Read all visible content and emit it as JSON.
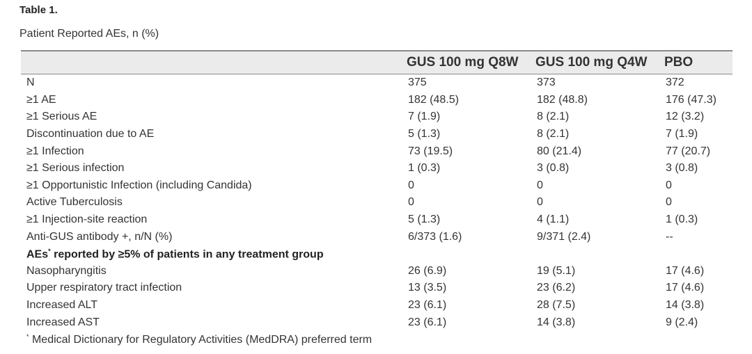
{
  "table_label": "Table 1.",
  "caption": "Patient Reported AEs, n (%)",
  "columns": [
    "",
    "GUS 100 mg Q8W",
    "GUS 100 mg Q4W",
    "PBO"
  ],
  "rows": [
    {
      "label": "N",
      "q8w": "375",
      "q4w": "373",
      "pbo": "372"
    },
    {
      "label": "≥1 AE",
      "q8w": "182 (48.5)",
      "q4w": "182 (48.8)",
      "pbo": "176 (47.3)"
    },
    {
      "label": "≥1 Serious AE",
      "q8w": "7 (1.9)",
      "q4w": "8 (2.1)",
      "pbo": "12 (3.2)"
    },
    {
      "label": "Discontinuation due to AE",
      "q8w": "5 (1.3)",
      "q4w": "8 (2.1)",
      "pbo": "7 (1.9)"
    },
    {
      "label": "≥1 Infection",
      "q8w": "73 (19.5)",
      "q4w": "80 (21.4)",
      "pbo": "77 (20.7)"
    },
    {
      "label": "≥1 Serious infection",
      "q8w": "1 (0.3)",
      "q4w": "3 (0.8)",
      "pbo": "3 (0.8)"
    },
    {
      "label": "≥1 Opportunistic Infection (including Candida)",
      "q8w": "0",
      "q4w": "0",
      "pbo": "0"
    },
    {
      "label": "Active Tuberculosis",
      "q8w": "0",
      "q4w": "0",
      "pbo": "0"
    },
    {
      "label": "≥1 Injection-site reaction",
      "q8w": "5 (1.3)",
      "q4w": "4 (1.1)",
      "pbo": "1 (0.3)"
    },
    {
      "label": "Anti-GUS antibody +, n/N (%)",
      "q8w": "6/373 (1.6)",
      "q4w": "9/371 (2.4)",
      "pbo": "--"
    }
  ],
  "section": {
    "label_pre": "AEs",
    "label_sup": "*",
    "label_post": " reported by ≥5% of patients in any treatment group"
  },
  "section_rows": [
    {
      "label": "Nasopharyngitis",
      "q8w": "26 (6.9)",
      "q4w": "19 (5.1)",
      "pbo": "17 (4.6)"
    },
    {
      "label": "Upper respiratory tract infection",
      "q8w": "13 (3.5)",
      "q4w": "23 (6.2)",
      "pbo": "17 (4.6)"
    },
    {
      "label": "Increased ALT",
      "q8w": "23 (6.1)",
      "q4w": "28 (7.5)",
      "pbo": "14 (3.8)"
    },
    {
      "label": "Increased AST",
      "q8w": "23 (6.1)",
      "q4w": "14 (3.8)",
      "pbo": "9 (2.4)"
    }
  ],
  "footnote": {
    "marker": "*",
    "text": " Medical Dictionary for Regulatory Activities (MedDRA) preferred term"
  }
}
